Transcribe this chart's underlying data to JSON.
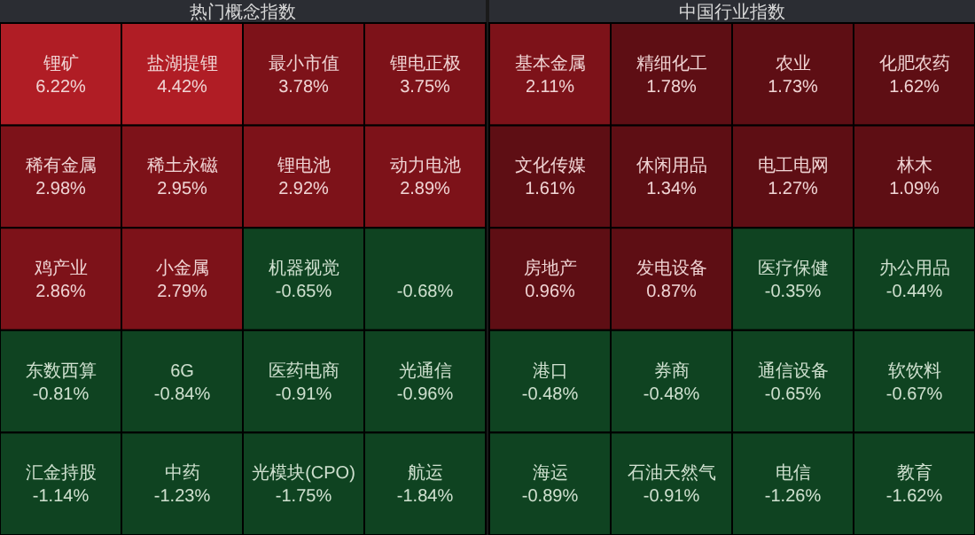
{
  "chart_data": [
    {
      "type": "other",
      "title": "热门概念指数",
      "categories": [
        "锂矿",
        "盐湖提锂",
        "最小市值",
        "锂电正极",
        "稀有金属",
        "稀土永磁",
        "锂电池",
        "动力电池",
        "鸡产业",
        "小金属",
        "机器视觉",
        null,
        "东数西算",
        "6G",
        "医药电商",
        "光通信",
        "汇金持股",
        "中药",
        "光模块(CPO)",
        "航运"
      ],
      "values": [
        6.22,
        4.42,
        3.78,
        3.75,
        2.98,
        2.95,
        2.92,
        2.89,
        2.86,
        2.79,
        -0.65,
        -0.68,
        -0.81,
        -0.84,
        -0.91,
        -0.96,
        -1.14,
        -1.23,
        -1.75,
        -1.84
      ],
      "value_labels": [
        "6.22%",
        "4.42%",
        "3.78%",
        "3.75%",
        "2.98%",
        "2.95%",
        "2.92%",
        "2.89%",
        "2.86%",
        "2.79%",
        "-0.65%",
        "-0.68%",
        "-0.81%",
        "-0.84%",
        "-0.91%",
        "-0.96%",
        "-1.14%",
        "-1.23%",
        "-1.75%",
        "-1.84%"
      ],
      "colors": [
        "#b01d25",
        "#b01d25",
        "#7d1219",
        "#7d1219",
        "#7d1219",
        "#7d1219",
        "#7d1219",
        "#7d1219",
        "#7d1219",
        "#7d1219",
        "#0f4321",
        "#0f4321",
        "#0f4321",
        "#0f4321",
        "#0f4321",
        "#0f4321",
        "#0f4321",
        "#0f4321",
        "#0f4321",
        "#0f4321"
      ]
    },
    {
      "type": "other",
      "title": "中国行业指数",
      "categories": [
        "基本金属",
        "精细化工",
        "农业",
        "化肥农药",
        "文化传媒",
        "休闲用品",
        "电工电网",
        "林木",
        "房地产",
        "发电设备",
        "医疗保健",
        "办公用品",
        "港口",
        "券商",
        "通信设备",
        "软饮料",
        "海运",
        "石油天然气",
        "电信",
        "教育"
      ],
      "values": [
        2.11,
        1.78,
        1.73,
        1.62,
        1.61,
        1.34,
        1.27,
        1.09,
        0.96,
        0.87,
        -0.35,
        -0.44,
        -0.48,
        -0.48,
        -0.65,
        -0.67,
        -0.89,
        -0.91,
        -1.26,
        -1.62
      ],
      "value_labels": [
        "2.11%",
        "1.78%",
        "1.73%",
        "1.62%",
        "1.61%",
        "1.34%",
        "1.27%",
        "1.09%",
        "0.96%",
        "0.87%",
        "-0.35%",
        "-0.44%",
        "-0.48%",
        "-0.48%",
        "-0.65%",
        "-0.67%",
        "-0.89%",
        "-0.91%",
        "-1.26%",
        "-1.62%"
      ],
      "colors": [
        "#7d1219",
        "#5e0e14",
        "#5e0e14",
        "#5e0e14",
        "#5e0e14",
        "#5e0e14",
        "#5e0e14",
        "#5e0e14",
        "#5e0e14",
        "#5e0e14",
        "#0f4321",
        "#0f4321",
        "#0f4321",
        "#0f4321",
        "#0f4321",
        "#0f4321",
        "#0f4321",
        "#0f4321",
        "#0f4321",
        "#0f4321"
      ]
    }
  ]
}
